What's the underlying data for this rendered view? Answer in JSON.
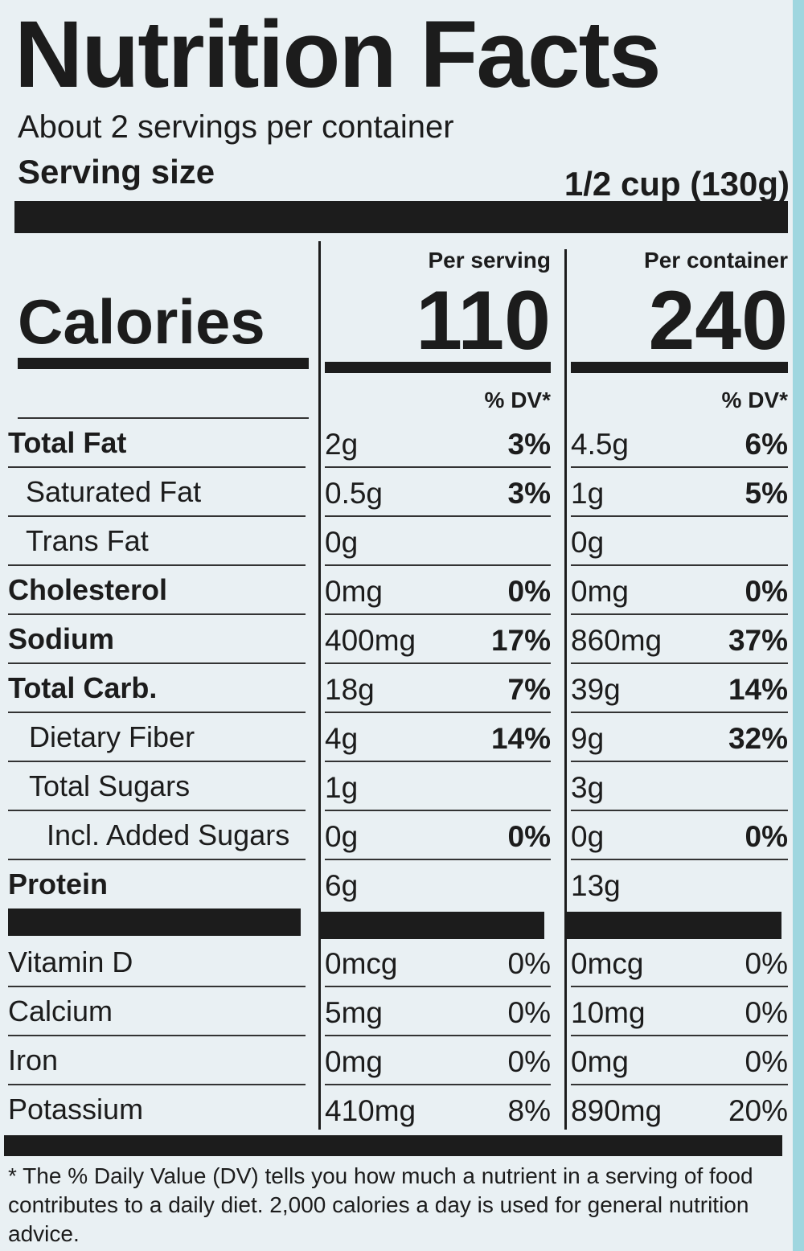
{
  "title": "Nutrition Facts",
  "servings": "About 2 servings per container",
  "serving_size": {
    "label": "Serving size",
    "value": "1/2 cup (130g)"
  },
  "calories": {
    "label": "Calories",
    "columns": [
      {
        "heading": "Per serving",
        "value": "110",
        "dv_heading": "% DV*"
      },
      {
        "heading": "Per container",
        "value": "240",
        "dv_heading": "% DV*"
      }
    ]
  },
  "nutrients": [
    {
      "name": "Total Fat",
      "serving": [
        "2g",
        "3%"
      ],
      "container": [
        "4.5g",
        "6%"
      ]
    },
    {
      "name": "Saturated Fat",
      "serving": [
        "0.5g",
        "3%"
      ],
      "container": [
        "1g",
        "5%"
      ]
    },
    {
      "name": "Trans Fat",
      "serving": [
        "0g",
        null
      ],
      "container": [
        "0g",
        null
      ]
    },
    {
      "name": "Cholesterol",
      "serving": [
        "0mg",
        "0%"
      ],
      "container": [
        "0mg",
        "0%"
      ]
    },
    {
      "name": "Sodium",
      "serving": [
        "400mg",
        "17%"
      ],
      "container": [
        "860mg",
        "37%"
      ]
    },
    {
      "name": "Total Carb.",
      "serving": [
        "18g",
        "7%"
      ],
      "container": [
        "39g",
        "14%"
      ]
    },
    {
      "name": "Dietary Fiber",
      "serving": [
        "4g",
        "14%"
      ],
      "container": [
        "9g",
        "32%"
      ]
    },
    {
      "name": "Total Sugars",
      "serving": [
        "1g",
        null
      ],
      "container": [
        "3g",
        null
      ]
    },
    {
      "name": "Incl. Added Sugars",
      "serving": [
        "0g",
        "0%"
      ],
      "container": [
        "0g",
        "0%"
      ]
    },
    {
      "name": "Protein",
      "serving": [
        "6g",
        null
      ],
      "container": [
        "13g",
        null
      ]
    }
  ],
  "vitamins": [
    {
      "name": "Vitamin D",
      "serving": [
        "0mcg",
        "0%"
      ],
      "container": [
        "0mcg",
        "0%"
      ]
    },
    {
      "name": "Calcium",
      "serving": [
        "5mg",
        "0%"
      ],
      "container": [
        "10mg",
        "0%"
      ]
    },
    {
      "name": "Iron",
      "serving": [
        "0mg",
        "0%"
      ],
      "container": [
        "0mg",
        "0%"
      ]
    },
    {
      "name": "Potassium",
      "serving": [
        "410mg",
        "8%"
      ],
      "container": [
        "890mg",
        "20%"
      ]
    }
  ],
  "footnote": "* The % Daily Value (DV) tells you how much a nutrient in a serving of food contributes to a daily diet. 2,000 calories a day is used for general nutrition advice."
}
